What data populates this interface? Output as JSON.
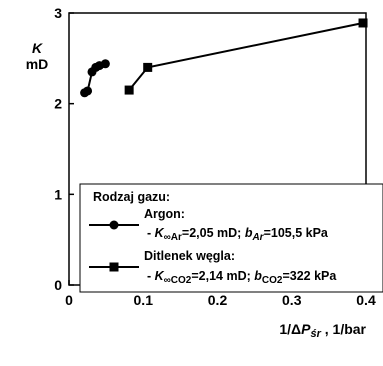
{
  "chart_data": {
    "type": "line",
    "xlim": [
      0,
      0.4
    ],
    "ylim": [
      0,
      3
    ],
    "x_ticks": [
      {
        "value": 0,
        "label": "0"
      },
      {
        "value": 0.1,
        "label": "0.1"
      },
      {
        "value": 0.2,
        "label": "0.2"
      },
      {
        "value": 0.3,
        "label": "0.3"
      },
      {
        "value": 0.4,
        "label": "0.4"
      }
    ],
    "y_ticks": [
      {
        "value": 0,
        "label": "0"
      },
      {
        "value": 1,
        "label": "1"
      },
      {
        "value": 2,
        "label": "2"
      },
      {
        "value": 3,
        "label": "3"
      }
    ],
    "ylabel_symbol": "K",
    "ylabel_unit": "mD",
    "xlabel_prefix": "1/Δ",
    "xlabel_symbol": "P",
    "xlabel_sub": "śr",
    "xlabel_suffix": " , 1/bar",
    "grid": false,
    "legend": {
      "placement": "bottom-right",
      "title": "Rodzaj gazu:",
      "entries": [
        {
          "name": "Argon:",
          "marker": "circle",
          "detail_prefix": "- ",
          "detail_k": "K",
          "detail_k_sub": "∞Ar",
          "detail_mid": "=2,05 mD; ",
          "detail_b": "b",
          "detail_b_sub": "Ar",
          "detail_end": "=105,5 kPa"
        },
        {
          "name": "Ditlenek węgla:",
          "marker": "square",
          "detail_prefix": "- ",
          "detail_k": "K",
          "detail_k_sub": "∞CO2",
          "detail_mid": "=2,14 mD; ",
          "detail_b": "b",
          "detail_b_sub": "CO2",
          "detail_end": "=322 kPa"
        }
      ]
    },
    "series": [
      {
        "marker": "circle",
        "color": "#000000",
        "x": [
          0.021,
          0.025,
          0.031,
          0.036,
          0.041,
          0.049
        ],
        "y": [
          2.12,
          2.14,
          2.35,
          2.4,
          2.42,
          2.44
        ]
      },
      {
        "marker": "square",
        "color": "#000000",
        "x": [
          0.081,
          0.106,
          0.396
        ],
        "y": [
          2.15,
          2.4,
          2.89
        ]
      }
    ]
  }
}
